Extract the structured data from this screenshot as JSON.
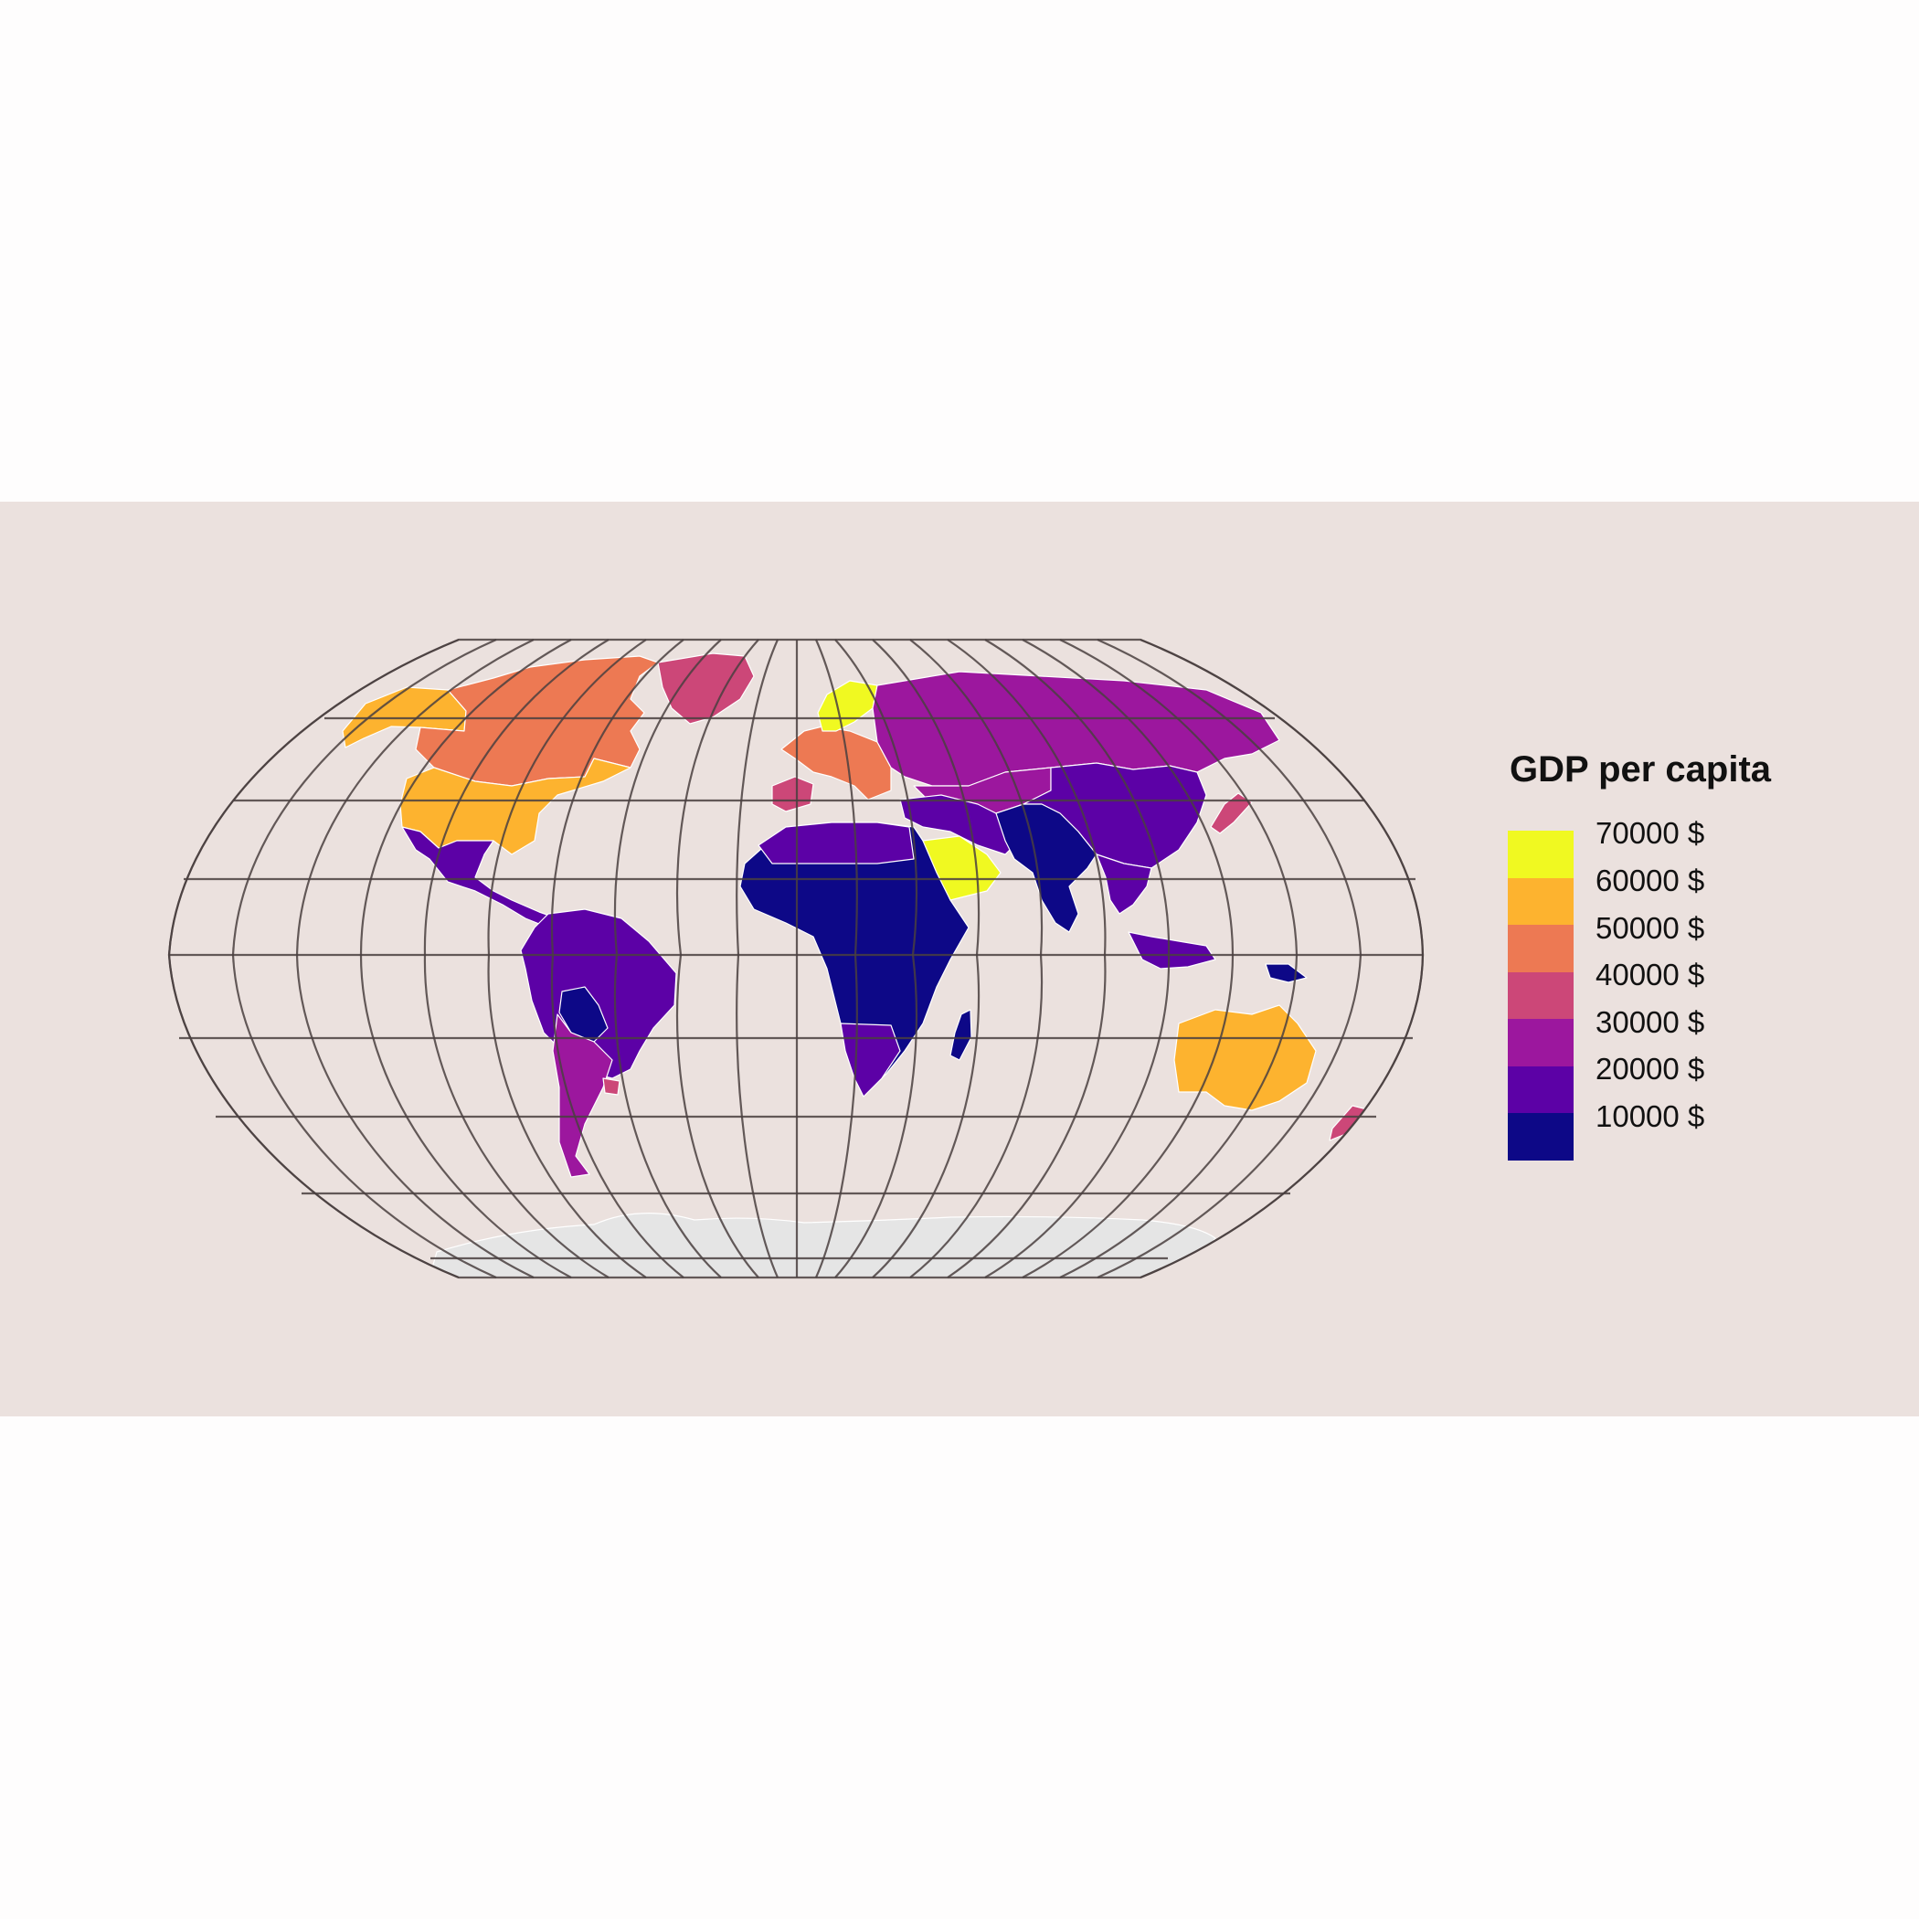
{
  "legend": {
    "title": "GDP per capita",
    "items": [
      {
        "label": "70000 $",
        "color": "#f0f921"
      },
      {
        "label": "60000 $",
        "color": "#fdb32f"
      },
      {
        "label": "50000 $",
        "color": "#ed7953"
      },
      {
        "label": "40000 $",
        "color": "#cc4778"
      },
      {
        "label": "30000 $",
        "color": "#9c179e"
      },
      {
        "label": "20000 $",
        "color": "#5c01a6"
      },
      {
        "label": "10000 $",
        "color": "#0d0887"
      }
    ]
  },
  "colors": {
    "background": "#fefdfd",
    "panel": "#ebe1de",
    "graticule": "#4a4040",
    "antarctica": "#e5e5e5",
    "border": "#ffffff"
  },
  "regions": [
    {
      "name": "Alaska",
      "color": "#fdb32f"
    },
    {
      "name": "Canada",
      "color": "#ed7953"
    },
    {
      "name": "Greenland",
      "color": "#cc4778"
    },
    {
      "name": "United States",
      "color": "#fdb32f"
    },
    {
      "name": "Mexico & Central America",
      "color": "#5c01a6"
    },
    {
      "name": "South America",
      "color": "#5c01a6"
    },
    {
      "name": "Bolivia",
      "color": "#0d0887"
    },
    {
      "name": "Chile & Argentina",
      "color": "#9c179e"
    },
    {
      "name": "Uruguay",
      "color": "#cc4778"
    },
    {
      "name": "Western Europe",
      "color": "#ed7953"
    },
    {
      "name": "Norway",
      "color": "#f0f921"
    },
    {
      "name": "Iberia",
      "color": "#cc4778"
    },
    {
      "name": "Russia",
      "color": "#9c179e"
    },
    {
      "name": "Africa",
      "color": "#0d0887"
    },
    {
      "name": "North Africa",
      "color": "#5c01a6"
    },
    {
      "name": "Southern Africa",
      "color": "#5c01a6"
    },
    {
      "name": "Madagascar",
      "color": "#0d0887"
    },
    {
      "name": "Middle East",
      "color": "#5c01a6"
    },
    {
      "name": "Arabian Peninsula",
      "color": "#f0f921"
    },
    {
      "name": "Central Asia",
      "color": "#9c179e"
    },
    {
      "name": "China",
      "color": "#5c01a6"
    },
    {
      "name": "South Asia",
      "color": "#0d0887"
    },
    {
      "name": "Southeast Asia",
      "color": "#5c01a6"
    },
    {
      "name": "Japan & Korea",
      "color": "#cc4778"
    },
    {
      "name": "Indonesia",
      "color": "#5c01a6"
    },
    {
      "name": "Papua New Guinea",
      "color": "#0d0887"
    },
    {
      "name": "Australia",
      "color": "#fdb32f"
    },
    {
      "name": "New Zealand",
      "color": "#cc4778"
    },
    {
      "name": "Antarctica",
      "color": "#e5e5e5"
    }
  ]
}
